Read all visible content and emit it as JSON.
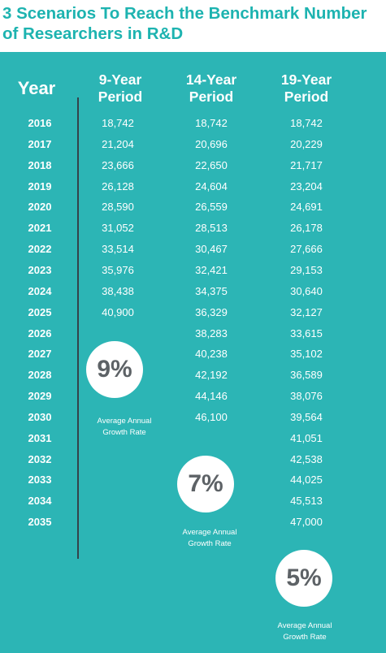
{
  "title_line1": "3 Scenarios To Reach the Benchmark Number",
  "title_line2": "of Researchers in R&D",
  "headers": {
    "year": "Year",
    "col1_line1": "9-Year",
    "col1_line2": "Period",
    "col2_line1": "14-Year",
    "col2_line2": "Period",
    "col3_line1": "19-Year",
    "col3_line2": "Period"
  },
  "rows": [
    {
      "year": "2016",
      "v1": "18,742",
      "v2": "18,742",
      "v3": "18,742"
    },
    {
      "year": "2017",
      "v1": "21,204",
      "v2": "20,696",
      "v3": "20,229"
    },
    {
      "year": "2018",
      "v1": "23,666",
      "v2": "22,650",
      "v3": "21,717"
    },
    {
      "year": "2019",
      "v1": "26,128",
      "v2": "24,604",
      "v3": "23,204"
    },
    {
      "year": "2020",
      "v1": "28,590",
      "v2": "26,559",
      "v3": "24,691"
    },
    {
      "year": "2021",
      "v1": "31,052",
      "v2": "28,513",
      "v3": "26,178"
    },
    {
      "year": "2022",
      "v1": "33,514",
      "v2": "30,467",
      "v3": "27,666"
    },
    {
      "year": "2023",
      "v1": "35,976",
      "v2": "32,421",
      "v3": "29,153"
    },
    {
      "year": "2024",
      "v1": "38,438",
      "v2": "34,375",
      "v3": "30,640"
    },
    {
      "year": "2025",
      "v1": "40,900",
      "v2": "36,329",
      "v3": "32,127"
    },
    {
      "year": "2026",
      "v1": "",
      "v2": "38,283",
      "v3": "33,615"
    },
    {
      "year": "2027",
      "v1": "",
      "v2": "40,238",
      "v3": "35,102"
    },
    {
      "year": "2028",
      "v1": "",
      "v2": "42,192",
      "v3": "36,589"
    },
    {
      "year": "2029",
      "v1": "",
      "v2": "44,146",
      "v3": "38,076"
    },
    {
      "year": "2030",
      "v1": "",
      "v2": "46,100",
      "v3": "39,564"
    },
    {
      "year": "2031",
      "v1": "",
      "v2": "",
      "v3": "41,051"
    },
    {
      "year": "2032",
      "v1": "",
      "v2": "",
      "v3": "42,538"
    },
    {
      "year": "2033",
      "v1": "",
      "v2": "",
      "v3": "44,025"
    },
    {
      "year": "2034",
      "v1": "",
      "v2": "",
      "v3": "45,513"
    },
    {
      "year": "2035",
      "v1": "",
      "v2": "",
      "v3": "47,000"
    }
  ],
  "growth": [
    {
      "pct": "9%",
      "cap1": "Average Annual",
      "cap2": "Growth Rate"
    },
    {
      "pct": "7%",
      "cap1": "Average Annual",
      "cap2": "Growth Rate"
    },
    {
      "pct": "5%",
      "cap1": "Average Annual",
      "cap2": "Growth Rate"
    }
  ],
  "colors": {
    "title": "#1db3b0",
    "panel": "#2cb5b5",
    "divider": "#34434b",
    "circle_text": "#5d6266"
  }
}
